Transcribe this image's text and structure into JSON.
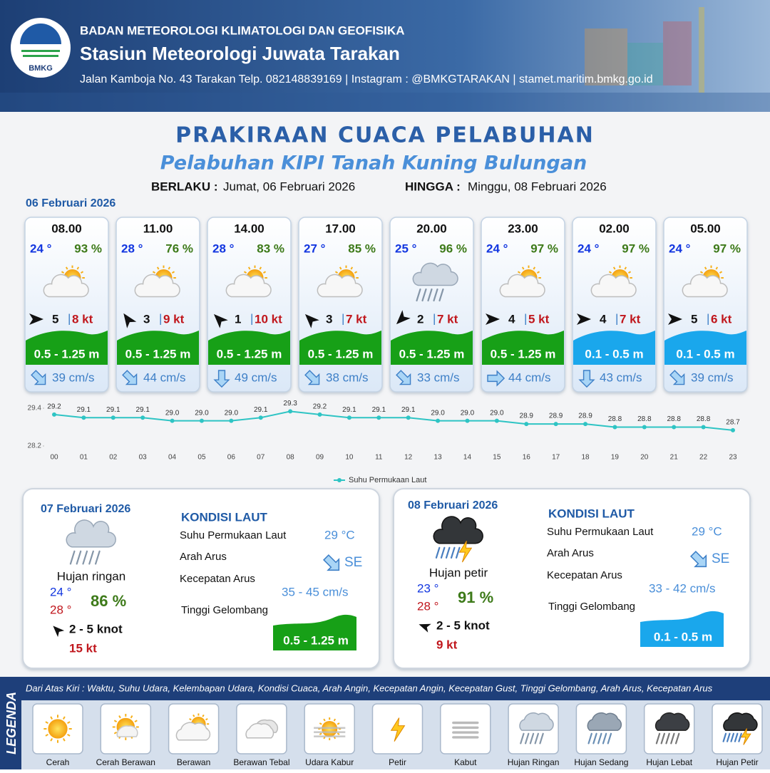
{
  "header": {
    "agency": "BADAN METEOROLOGI KLIMATOLOGI DAN GEOFISIKA",
    "station": "Stasiun Meteorologi Juwata Tarakan",
    "address": "Jalan Kamboja No. 43 Tarakan  Telp. 082148839169 | Instagram : @BMKGTARAKAN | stamet.maritim.bmkg.go.id",
    "logo_text": "BMKG"
  },
  "title": "PRAKIRAAN CUACA PELABUHAN",
  "subtitle": "Pelabuhan KIPI Tanah Kuning Bulungan",
  "validity": {
    "from_label": "BERLAKU :",
    "from": "Jumat, 06 Februari 2026",
    "to_label": "HINGGA :",
    "to": "Minggu, 08 Februari 2026"
  },
  "today": {
    "date": "06 Februari 2026",
    "separator": "|",
    "forecasts": [
      {
        "time": "08.00",
        "temperature": "24 °",
        "humidity": "93 %",
        "wind": "5",
        "gust": "8 kt",
        "wave": "0.5 - 1.25 m",
        "wave_color": "#17a017",
        "current": "39 cm/s"
      },
      {
        "time": "11.00",
        "temperature": "28 °",
        "humidity": "76 %",
        "wind": "3",
        "gust": "9 kt",
        "wave": "0.5 - 1.25 m",
        "wave_color": "#17a017",
        "current": "44 cm/s"
      },
      {
        "time": "14.00",
        "temperature": "28 °",
        "humidity": "83 %",
        "wind": "1",
        "gust": "10 kt",
        "wave": "0.5 - 1.25 m",
        "wave_color": "#17a017",
        "current": "49 cm/s"
      },
      {
        "time": "17.00",
        "temperature": "27 °",
        "humidity": "85 %",
        "wind": "3",
        "gust": "7 kt",
        "wave": "0.5 - 1.25 m",
        "wave_color": "#17a017",
        "current": "38 cm/s"
      },
      {
        "time": "20.00",
        "temperature": "25 °",
        "humidity": "96 %",
        "wind": "2",
        "gust": "7 kt",
        "wave": "0.5 - 1.25 m",
        "wave_color": "#17a017",
        "current": "33 cm/s"
      },
      {
        "time": "23.00",
        "temperature": "24 °",
        "humidity": "97 %",
        "wind": "4",
        "gust": "5 kt",
        "wave": "0.5 - 1.25 m",
        "wave_color": "#17a017",
        "current": "44 cm/s"
      },
      {
        "time": "02.00",
        "temperature": "24 °",
        "humidity": "97 %",
        "wind": "4",
        "gust": "7 kt",
        "wave": "0.1 - 0.5 m",
        "wave_color": "#1aa7ec",
        "current": "43 cm/s"
      },
      {
        "time": "05.00",
        "temperature": "24 °",
        "humidity": "97 %",
        "wind": "5",
        "gust": "6 kt",
        "wave": "0.1 - 0.5 m",
        "wave_color": "#1aa7ec",
        "current": "39 cm/s"
      }
    ]
  },
  "chart_data": {
    "type": "line",
    "categories": [
      "00",
      "01",
      "02",
      "03",
      "04",
      "05",
      "06",
      "07",
      "08",
      "09",
      "10",
      "11",
      "12",
      "13",
      "14",
      "15",
      "16",
      "17",
      "18",
      "19",
      "20",
      "21",
      "22",
      "23"
    ],
    "series": [
      {
        "name": "Suhu Permukaan Laut",
        "color": "#2ec4c4",
        "values": [
          29.2,
          29.1,
          29.1,
          29.1,
          29.0,
          29.0,
          29.0,
          29.1,
          29.3,
          29.2,
          29.1,
          29.1,
          29.1,
          29.0,
          29.0,
          29.0,
          28.9,
          28.9,
          28.9,
          28.8,
          28.8,
          28.8,
          28.8,
          28.7
        ],
        "value_labels": [
          "29.2",
          "29.1",
          "29.1",
          "29.1",
          "29.0",
          "29.0",
          "29.0",
          "29.1",
          "29.3",
          "29.2",
          "29.1",
          "29.1",
          "29.1",
          "29.0",
          "29.0",
          "29.0",
          "28.9",
          "28.9",
          "28.9",
          "28.8",
          "28.8",
          "28.8",
          "28.8",
          "28.7"
        ]
      }
    ],
    "ylim": [
      28.2,
      29.4
    ],
    "yticks": [
      28.2,
      29.4
    ],
    "grid": false,
    "legend": "bottom"
  },
  "days": [
    {
      "date": "07 Februari 2026",
      "condition": "Hujan ringan",
      "temp_min": "24 °",
      "temp_max": "28 °",
      "humidity": "86 %",
      "wind": "2  - 5 knot",
      "gust": "15 kt",
      "sea_title": "KONDISI LAUT",
      "sst_label": "Suhu Permukaan Laut",
      "sst": "29 °C",
      "current_dir_label": "Arah Arus",
      "current_dir": "SE",
      "current_speed_label": "Kecepatan Arus",
      "current_speed": "35 - 45 cm/s",
      "wave_label": "Tinggi Gelombang",
      "wave": "0.5 - 1.25 m",
      "wave_color": "#17a017"
    },
    {
      "date": "08 Februari 2026",
      "condition": "Hujan petir",
      "temp_min": "23 °",
      "temp_max": "28 °",
      "humidity": "91 %",
      "wind": "2 - 5 knot",
      "gust": "9 kt",
      "sea_title": "KONDISI LAUT",
      "sst_label": "Suhu Permukaan Laut",
      "sst": "29 °C",
      "current_dir_label": "Arah Arus",
      "current_dir": "SE",
      "current_speed_label": "Kecepatan Arus",
      "current_speed": "33 - 42 cm/s",
      "wave_label": "Tinggi Gelombang",
      "wave": "0.1 - 0.5 m",
      "wave_color": "#1aa7ec"
    }
  ],
  "legend": {
    "title": "LEGENDA",
    "description": "Dari Atas Kiri : Waktu, Suhu Udara, Kelembapan Udara, Kondisi Cuaca, Arah Angin, Kecepatan Angin, Kecepatan Gust, Tinggi Gelombang, Arah Arus, Kecepatan Arus",
    "items": [
      "Cerah",
      "Cerah Berawan",
      "Berawan",
      "Berawan Tebal",
      "Udara Kabur",
      "Petir",
      "Kabut",
      "Hujan Ringan",
      "Hujan Sedang",
      "Hujan Lebat",
      "Hujan Petir"
    ]
  }
}
